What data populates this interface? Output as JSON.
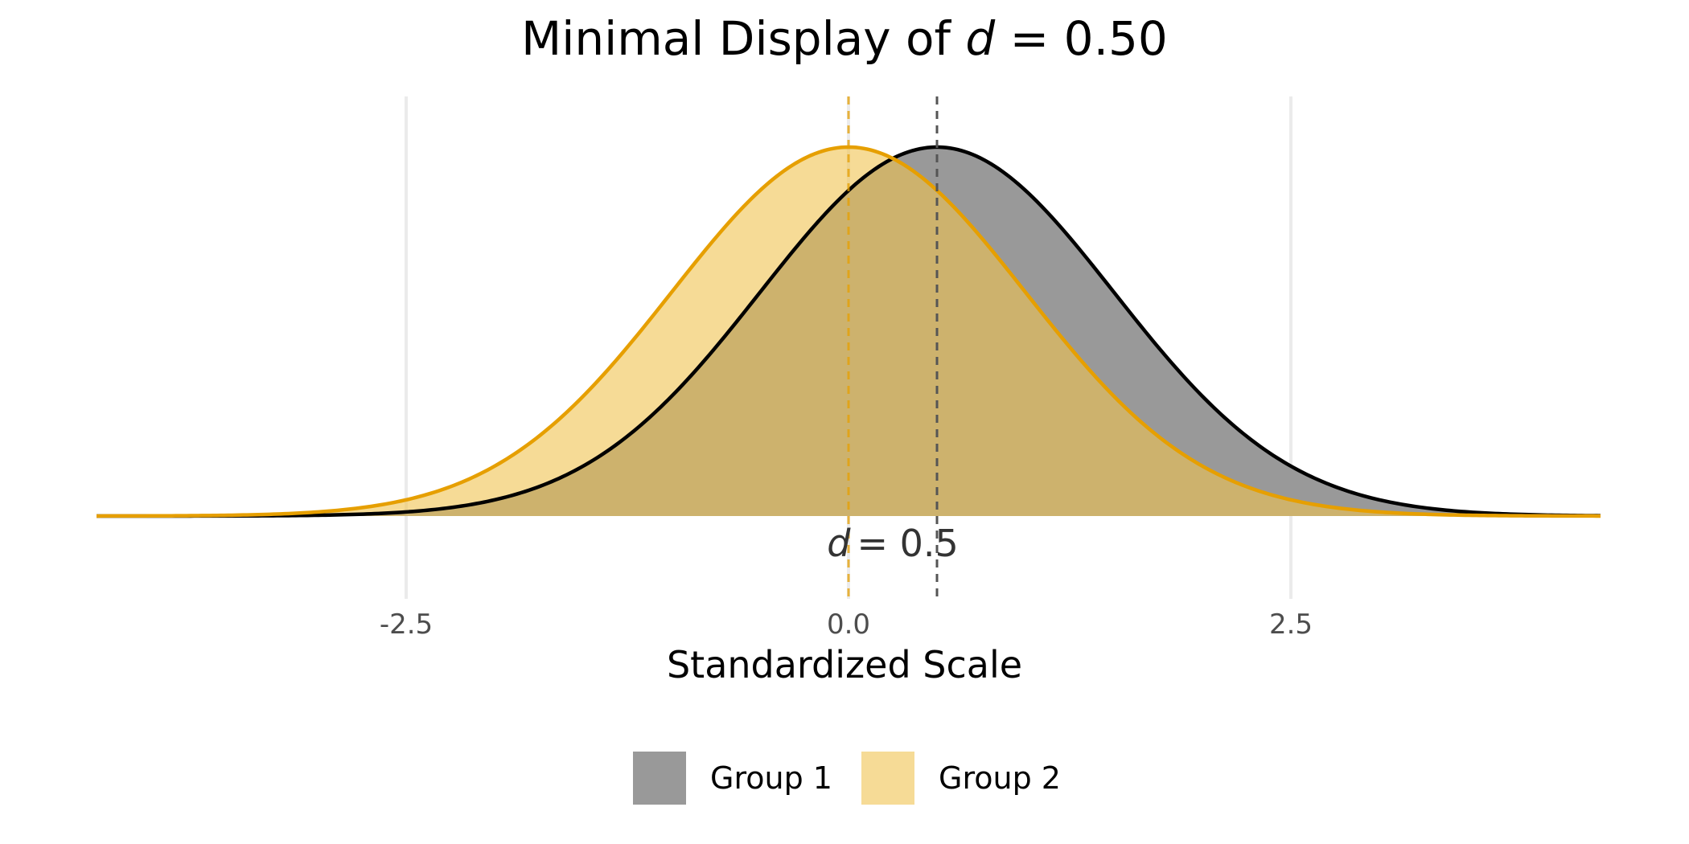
{
  "chart_data": {
    "type": "area",
    "title": {
      "prefix": "Minimal Display of ",
      "variable": "d",
      "suffix": " = 0.50"
    },
    "xlabel": "Standardized Scale",
    "ylabel": "",
    "xlim": [
      -4.25,
      4.25
    ],
    "x_ticks": [
      -2.5,
      0.0,
      2.5
    ],
    "x_tick_labels": [
      "-2.5",
      "0.0",
      "2.5"
    ],
    "grid": true,
    "legend_position": "bottom",
    "series": [
      {
        "name": "Group 1",
        "distribution": "normal",
        "mean": 0.5,
        "sd": 1.0,
        "fill": "#999999",
        "line": "#000000",
        "mean_line_color": "#555555"
      },
      {
        "name": "Group 2",
        "distribution": "normal",
        "mean": 0.0,
        "sd": 1.0,
        "fill": "#F0C350",
        "fill_opacity": 0.6,
        "line": "#E69F00",
        "mean_line_color": "#E69F00"
      }
    ],
    "annotation": {
      "variable": "d",
      "rest": "= 0.5",
      "x": 0.25
    }
  }
}
